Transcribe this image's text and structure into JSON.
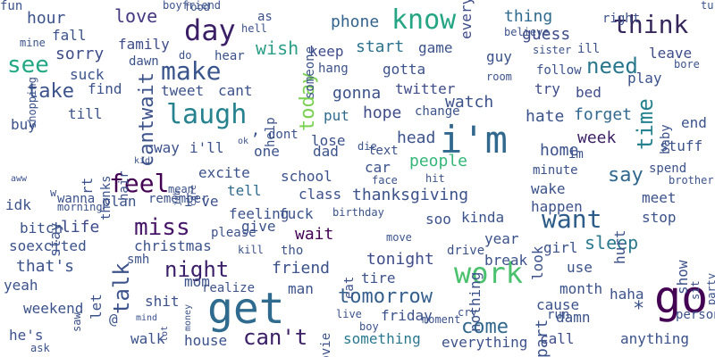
{
  "words": [
    {
      "text": "get",
      "color": "#2f6b8e",
      "rotate": 0
    },
    {
      "text": "go",
      "color": "#440154",
      "rotate": 0
    },
    {
      "text": "i'm",
      "color": "#31688e",
      "rotate": 0
    },
    {
      "text": "day",
      "color": "#3b1f66",
      "rotate": 0
    },
    {
      "text": "know",
      "color": "#25a584",
      "rotate": 0
    },
    {
      "text": "laugh",
      "color": "#26828e",
      "rotate": 0
    },
    {
      "text": "work",
      "color": "#4ac16d",
      "rotate": 0
    },
    {
      "text": "think",
      "color": "#35275c",
      "rotate": 0
    },
    {
      "text": "want",
      "color": "#2c5d8a",
      "rotate": 0
    },
    {
      "text": "feel",
      "color": "#440154",
      "rotate": 0
    },
    {
      "text": "make",
      "color": "#39558c",
      "rotate": 0
    },
    {
      "text": "miss",
      "color": "#481668",
      "rotate": 0
    },
    {
      "text": "see",
      "color": "#22a884",
      "rotate": 0
    },
    {
      "text": "can't",
      "color": "#3b1f66",
      "rotate": 0
    },
    {
      "text": "night",
      "color": "#3c1f6a",
      "rotate": 0
    },
    {
      "text": "need",
      "color": "#2a788e",
      "rotate": 0
    },
    {
      "text": "come",
      "color": "#31688e",
      "rotate": 0
    },
    {
      "text": "tomorrow",
      "color": "#355f8d",
      "rotate": 0
    },
    {
      "text": "sleep",
      "color": "#2a788e",
      "rotate": 0
    },
    {
      "text": "time",
      "color": "#26828e",
      "rotate": -90
    },
    {
      "text": "today",
      "color": "#7ad151",
      "rotate": -90
    },
    {
      "text": "talk",
      "color": "#3b528b",
      "rotate": -90
    },
    {
      "text": "cantwait",
      "color": "#3b528b",
      "rotate": -90
    },
    {
      "text": "take",
      "color": "#3b528b",
      "rotate": 0
    },
    {
      "text": "say",
      "color": "#31688e",
      "rotate": 0
    },
    {
      "text": "wish",
      "color": "#2a9e86",
      "rotate": 0
    },
    {
      "text": "love",
      "color": "#453781",
      "rotate": 0
    },
    {
      "text": "hour",
      "color": "#3b528b",
      "rotate": 0
    },
    {
      "text": "sorry",
      "color": "#3e4c8a",
      "rotate": 0
    },
    {
      "text": "family",
      "color": "#3e4c8a",
      "rotate": 0
    },
    {
      "text": "suck",
      "color": "#3b528b",
      "rotate": 0
    },
    {
      "text": "week",
      "color": "#3b1f66",
      "rotate": 0
    },
    {
      "text": "home",
      "color": "#3b528b",
      "rotate": 0
    },
    {
      "text": "life",
      "color": "#3e4c8a",
      "rotate": 0
    },
    {
      "text": "wait",
      "color": "#440154",
      "rotate": 0
    },
    {
      "text": "tonight",
      "color": "#3e4c8a",
      "rotate": 0
    },
    {
      "text": "friend",
      "color": "#3b528b",
      "rotate": 0
    },
    {
      "text": "people",
      "color": "#35b779",
      "rotate": 0
    },
    {
      "text": "thing",
      "color": "#2f6b8e",
      "rotate": 0
    },
    {
      "text": "guess",
      "color": "#3e4c8a",
      "rotate": 0
    },
    {
      "text": "phone",
      "color": "#33638d",
      "rotate": 0
    },
    {
      "text": "start",
      "color": "#2c728e",
      "rotate": 0
    },
    {
      "text": "keep",
      "color": "#3e4c8a",
      "rotate": 0
    },
    {
      "text": "game",
      "color": "#3b528b",
      "rotate": 0
    },
    {
      "text": "gonna",
      "color": "#3b528b",
      "rotate": 0
    },
    {
      "text": "watch",
      "color": "#3b528b",
      "rotate": 0
    },
    {
      "text": "hope",
      "color": "#3e4c8a",
      "rotate": 0
    },
    {
      "text": "put",
      "color": "#2f6b8e",
      "rotate": 0
    },
    {
      "text": "hate",
      "color": "#3b528b",
      "rotate": 0
    },
    {
      "text": "forget",
      "color": "#31688e",
      "rotate": 0
    },
    {
      "text": "bed",
      "color": "#3e4c8a",
      "rotate": 0
    },
    {
      "text": "play",
      "color": "#3b528b",
      "rotate": 0
    },
    {
      "text": "leave",
      "color": "#3e4c8a",
      "rotate": 0
    },
    {
      "text": "try",
      "color": "#3e4c8a",
      "rotate": 0
    },
    {
      "text": "guy",
      "color": "#3b528b",
      "rotate": 0
    },
    {
      "text": "twitter",
      "color": "#3e4c8a",
      "rotate": 0
    },
    {
      "text": "follow",
      "color": "#3b528b",
      "rotate": 0
    },
    {
      "text": "gotta",
      "color": "#3b528b",
      "rotate": 0
    },
    {
      "text": "everyone",
      "color": "#3e4c8a",
      "rotate": -90
    },
    {
      "text": "excite",
      "color": "#3b528b",
      "rotate": 0
    },
    {
      "text": "way",
      "color": "#3b528b",
      "rotate": 0
    },
    {
      "text": "i'll",
      "color": "#3b528b",
      "rotate": 0
    },
    {
      "text": "tell",
      "color": "#2f6b8e",
      "rotate": 0
    },
    {
      "text": "school",
      "color": "#3b528b",
      "rotate": 0
    },
    {
      "text": "thanksgiving",
      "color": "#3b528b",
      "rotate": 0
    },
    {
      "text": "christmas",
      "color": "#3b528b",
      "rotate": 0
    },
    {
      "text": "mom",
      "color": "#3b528b",
      "rotate": 0
    },
    {
      "text": "shit",
      "color": "#3b528b",
      "rotate": 0
    },
    {
      "text": "house",
      "color": "#3b528b",
      "rotate": 0
    },
    {
      "text": "something",
      "color": "#2a788e",
      "rotate": 0
    },
    {
      "text": "everything",
      "color": "#3b528b",
      "rotate": 0
    },
    {
      "text": "call",
      "color": "#3e4c8a",
      "rotate": 0
    },
    {
      "text": "anything",
      "color": "#3b528b",
      "rotate": 0
    },
    {
      "text": "month",
      "color": "#3b528b",
      "rotate": 0
    },
    {
      "text": "cause",
      "color": "#3b528b",
      "rotate": 0
    },
    {
      "text": "haha",
      "color": "#3b528b",
      "rotate": 0
    },
    {
      "text": "damn",
      "color": "#3b528b",
      "rotate": 0
    },
    {
      "text": "use",
      "color": "#3b528b",
      "rotate": 0
    },
    {
      "text": "girl",
      "color": "#3b528b",
      "rotate": 0
    },
    {
      "text": "year",
      "color": "#3b528b",
      "rotate": 0
    },
    {
      "text": "break",
      "color": "#3b528b",
      "rotate": 0
    },
    {
      "text": "wake",
      "color": "#3b528b",
      "rotate": 0
    },
    {
      "text": "happen",
      "color": "#3b528b",
      "rotate": 0
    },
    {
      "text": "meet",
      "color": "#3b528b",
      "rotate": 0
    },
    {
      "text": "stop",
      "color": "#3b528b",
      "rotate": 0
    },
    {
      "text": "stuff",
      "color": "#3b528b",
      "rotate": 0
    },
    {
      "text": "baby",
      "color": "#3b528b",
      "rotate": -90
    },
    {
      "text": "end",
      "color": "#3b528b",
      "rotate": 0
    },
    {
      "text": "im",
      "color": "#3b528b",
      "rotate": 0
    },
    {
      "text": "head",
      "color": "#3b528b",
      "rotate": 0
    },
    {
      "text": "car",
      "color": "#3b528b",
      "rotate": 0
    },
    {
      "text": "dad",
      "color": "#3b528b",
      "rotate": 0
    },
    {
      "text": "text",
      "color": "#3b528b",
      "rotate": 0
    },
    {
      "text": "lose",
      "color": "#3b528b",
      "rotate": 0
    },
    {
      "text": "class",
      "color": "#3b528b",
      "rotate": 0
    },
    {
      "text": "fuck",
      "color": "#3b528b",
      "rotate": 0
    },
    {
      "text": "soo",
      "color": "#3b528b",
      "rotate": 0
    },
    {
      "text": "kinda",
      "color": "#3b528b",
      "rotate": 0
    },
    {
      "text": "tho",
      "color": "#3b528b",
      "rotate": 0
    },
    {
      "text": "give",
      "color": "#3b528b",
      "rotate": 0
    },
    {
      "text": "feeling",
      "color": "#3b528b",
      "rotate": 0
    },
    {
      "text": "tire",
      "color": "#3b528b",
      "rotate": 0
    },
    {
      "text": "man",
      "color": "#3b528b",
      "rotate": 0
    },
    {
      "text": "friday",
      "color": "#3b528b",
      "rotate": 0
    },
    {
      "text": "nothing",
      "color": "#3b528b",
      "rotate": -90
    },
    {
      "text": "look",
      "color": "#3b528b",
      "rotate": -90
    },
    {
      "text": "part",
      "color": "#3b528b",
      "rotate": -90
    },
    {
      "text": "hurt",
      "color": "#3b528b",
      "rotate": -90
    },
    {
      "text": "show",
      "color": "#3b528b",
      "rotate": -90
    },
    {
      "text": "eat",
      "color": "#3b528b",
      "rotate": -90
    },
    {
      "text": "movie",
      "color": "#3b528b",
      "rotate": -90
    },
    {
      "text": "help",
      "color": "#3b528b",
      "rotate": -90
    },
    {
      "text": "someone",
      "color": "#3b528b",
      "rotate": -90
    },
    {
      "text": "stay",
      "color": "#3b528b",
      "rotate": -90
    },
    {
      "text": "rt",
      "color": "#3b528b",
      "rotate": -90
    },
    {
      "text": "hair",
      "color": "#3b528b",
      "rotate": -90
    },
    {
      "text": "thanks",
      "color": "#3b528b",
      "rotate": -90
    },
    {
      "text": "wanna",
      "color": "#3b528b",
      "rotate": 0
    },
    {
      "text": "till",
      "color": "#3b528b",
      "rotate": 0
    },
    {
      "text": "buy",
      "color": "#3b528b",
      "rotate": 0
    },
    {
      "text": "find",
      "color": "#3b528b",
      "rotate": 0
    },
    {
      "text": "cant",
      "color": "#3b528b",
      "rotate": 0
    },
    {
      "text": "tweet",
      "color": "#3b528b",
      "rotate": 0
    },
    {
      "text": "fall",
      "color": "#3b528b",
      "rotate": 0
    },
    {
      "text": "hear",
      "color": "#3b528b",
      "rotate": 0
    },
    {
      "text": "dawn",
      "color": "#3b528b",
      "rotate": 0
    },
    {
      "text": "do",
      "color": "#3b528b",
      "rotate": 0
    },
    {
      "text": "as",
      "color": "#3b528b",
      "rotate": 0
    },
    {
      "text": "boyfriend",
      "color": "#3b528b",
      "rotate": 0
    },
    {
      "text": "food",
      "color": "#3b528b",
      "rotate": 0
    },
    {
      "text": "fun",
      "color": "#3b528b",
      "rotate": 0
    },
    {
      "text": "dont",
      "color": "#3b528b",
      "rotate": 0
    },
    {
      "text": "one",
      "color": "#3b528b",
      "rotate": 0
    },
    {
      "text": "i've",
      "color": "#3b528b",
      "rotate": 0
    },
    {
      "text": "plan",
      "color": "#3b528b",
      "rotate": 0
    },
    {
      "text": "remember",
      "color": "#3b528b",
      "rotate": 0
    },
    {
      "text": "please",
      "color": "#3b528b",
      "rotate": 0
    },
    {
      "text": "birthday",
      "color": "#3b528b",
      "rotate": 0
    },
    {
      "text": "move",
      "color": "#3b528b",
      "rotate": 0
    },
    {
      "text": "drive",
      "color": "#3b528b",
      "rotate": 0
    },
    {
      "text": "smh",
      "color": "#3b528b",
      "rotate": 0
    },
    {
      "text": "kill",
      "color": "#3b528b",
      "rotate": 0
    },
    {
      "text": "realize",
      "color": "#3b528b",
      "rotate": 0
    },
    {
      "text": "mean",
      "color": "#3b528b",
      "rotate": 0
    },
    {
      "text": "idk",
      "color": "#3b528b",
      "rotate": 0
    },
    {
      "text": "bitch",
      "color": "#3b528b",
      "rotate": 0
    },
    {
      "text": "morning",
      "color": "#3b528b",
      "rotate": 0
    },
    {
      "text": "soexcited",
      "color": "#3b528b",
      "rotate": 0
    },
    {
      "text": "that's",
      "color": "#3b528b",
      "rotate": 0
    },
    {
      "text": "yeah",
      "color": "#3b528b",
      "rotate": 0
    },
    {
      "text": "weekend",
      "color": "#3b528b",
      "rotate": 0
    },
    {
      "text": "he's",
      "color": "#3b528b",
      "rotate": 0
    },
    {
      "text": "ask",
      "color": "#3b528b",
      "rotate": 0
    },
    {
      "text": "walk",
      "color": "#3b528b",
      "rotate": 0
    },
    {
      "text": "live",
      "color": "#3b528b",
      "rotate": 0
    },
    {
      "text": "boy",
      "color": "#3b528b",
      "rotate": 0
    },
    {
      "text": "moment",
      "color": "#3b528b",
      "rotate": 0
    },
    {
      "text": "cry",
      "color": "#3b528b",
      "rotate": 0
    },
    {
      "text": "run",
      "color": "#3b528b",
      "rotate": 0
    },
    {
      "text": "person",
      "color": "#3b528b",
      "rotate": 0
    },
    {
      "text": "spend",
      "color": "#3b528b",
      "rotate": 0
    },
    {
      "text": "brother",
      "color": "#3b528b",
      "rotate": 0
    },
    {
      "text": "minute",
      "color": "#3b528b",
      "rotate": 0
    },
    {
      "text": "hit",
      "color": "#3b528b",
      "rotate": 0
    },
    {
      "text": "face",
      "color": "#3b528b",
      "rotate": 0
    },
    {
      "text": "die",
      "color": "#3b528b",
      "rotate": 0
    },
    {
      "text": "change",
      "color": "#3b528b",
      "rotate": 0
    },
    {
      "text": "hang",
      "color": "#3b528b",
      "rotate": 0
    },
    {
      "text": "room",
      "color": "#3b528b",
      "rotate": 0
    },
    {
      "text": "sister",
      "color": "#3b528b",
      "rotate": 0
    },
    {
      "text": "ill",
      "color": "#3b528b",
      "rotate": 0
    },
    {
      "text": "right",
      "color": "#3b528b",
      "rotate": 0
    },
    {
      "text": "believe",
      "color": "#3b528b",
      "rotate": 0
    },
    {
      "text": "hell",
      "color": "#3b528b",
      "rotate": 0
    },
    {
      "text": "turn",
      "color": "#3b528b",
      "rotate": 0
    },
    {
      "text": "bore",
      "color": "#3b528b",
      "rotate": 0
    },
    {
      "text": "mine",
      "color": "#3b528b",
      "rotate": 0
    },
    {
      "text": "shopping",
      "color": "#3b528b",
      "rotate": -90
    },
    {
      "text": "aww",
      "color": "#3b528b",
      "rotate": 0
    },
    {
      "text": "w",
      "color": "#3b528b",
      "rotate": 0
    },
    {
      "text": "kid",
      "color": "#3b528b",
      "rotate": 0
    },
    {
      "text": "care",
      "color": "#3b528b",
      "rotate": -90
    },
    {
      "text": "job",
      "color": "#3b528b",
      "rotate": -90
    },
    {
      "text": "ok",
      "color": "#3b528b",
      "rotate": 0
    },
    {
      "text": "mind",
      "color": "#3b528b",
      "rotate": 0
    },
    {
      "text": "money",
      "color": "#3b528b",
      "rotate": -90
    },
    {
      "text": "lot",
      "color": "#3b528b",
      "rotate": -90
    },
    {
      "text": "let",
      "color": "#3b528b",
      "rotate": -90
    },
    {
      "text": "saw",
      "color": "#3b528b",
      "rotate": -90
    },
    {
      "text": "sit",
      "color": "#3b528b",
      "rotate": -90
    },
    {
      "text": "party",
      "color": "#3b528b",
      "rotate": -90
    },
    {
      "text": "@",
      "color": "#3b528b",
      "rotate": 0
    },
    {
      "text": "*",
      "color": "#3b528b",
      "rotate": 0
    },
    {
      "text": "’",
      "color": "#3b528b",
      "rotate": 0
    },
    {
      "text": "",
      "color": "#3b528b",
      "rotate": 0
    },
    {
      "text": "",
      "color": "#3b528b",
      "rotate": 0
    },
    {
      "text": "",
      "color": "#3b528b",
      "rotate": 0
    },
    {
      "text": "",
      "color": "#3b528b",
      "rotate": 0
    },
    {
      "text": "",
      "color": "#3b528b",
      "rotate": 0
    },
    {
      "text": "",
      "color": "#3b528b",
      "rotate": 0
    }
  ]
}
